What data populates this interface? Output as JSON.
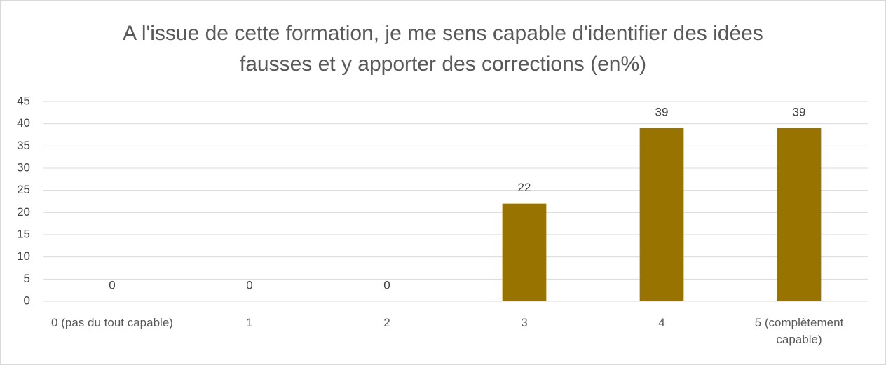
{
  "chart_data": {
    "type": "bar",
    "title": "A l'issue de cette formation, je me sens capable d'identifier des idées fausses et y apporter des corrections (en%)",
    "categories": [
      "0 (pas du tout capable)",
      "1",
      "2",
      "3",
      "4",
      "5 (complètement capable)"
    ],
    "values": [
      0,
      0,
      0,
      22,
      39,
      39
    ],
    "color": "#997300",
    "ylim": [
      0,
      45
    ],
    "yticks": [
      0,
      5,
      10,
      15,
      20,
      25,
      30,
      35,
      40,
      45
    ],
    "grid": true
  }
}
